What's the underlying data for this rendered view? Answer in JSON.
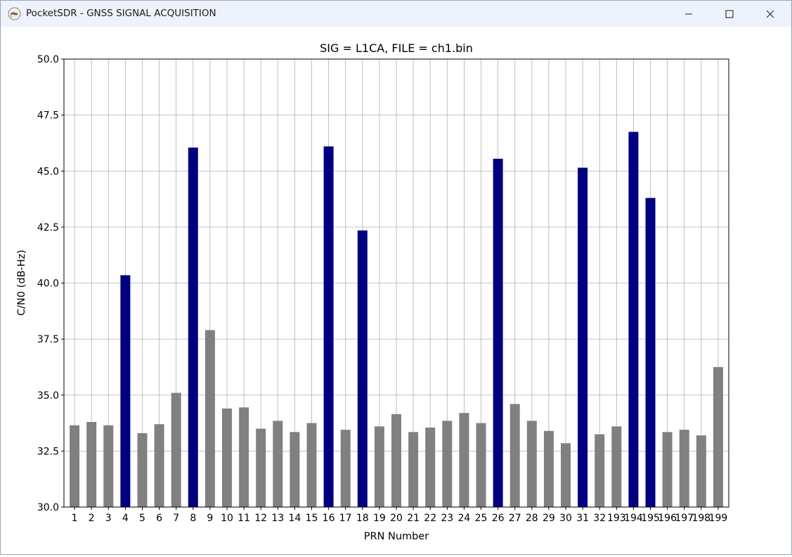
{
  "window": {
    "title": "PocketSDR - GNSS SIGNAL ACQUISITION",
    "app_icon": "satellite-icon",
    "controls": [
      "minimize-icon",
      "maximize-icon",
      "close-icon"
    ]
  },
  "chart_data": {
    "type": "bar",
    "title": "SIG = L1CA, FILE = ch1.bin",
    "xlabel": "PRN Number",
    "ylabel": "C/N0 (dB-Hz)",
    "ylim": [
      30.0,
      50.0
    ],
    "yticks": [
      "30.0",
      "32.5",
      "35.0",
      "37.5",
      "40.0",
      "42.5",
      "45.0",
      "47.5",
      "50.0"
    ],
    "grid": true,
    "categories": [
      "1",
      "2",
      "3",
      "4",
      "5",
      "6",
      "7",
      "8",
      "9",
      "10",
      "11",
      "12",
      "13",
      "14",
      "15",
      "16",
      "17",
      "18",
      "19",
      "20",
      "21",
      "22",
      "23",
      "24",
      "25",
      "26",
      "27",
      "28",
      "29",
      "30",
      "31",
      "32",
      "193",
      "194",
      "195",
      "196",
      "197",
      "198",
      "199"
    ],
    "values": [
      33.65,
      33.8,
      33.65,
      40.35,
      33.3,
      33.7,
      35.1,
      46.05,
      37.9,
      34.4,
      34.45,
      33.5,
      33.85,
      33.35,
      33.75,
      46.1,
      33.45,
      42.35,
      33.6,
      34.15,
      33.35,
      33.55,
      33.85,
      34.2,
      33.75,
      45.55,
      34.6,
      33.85,
      33.4,
      32.85,
      45.15,
      33.25,
      33.6,
      46.75,
      43.8,
      33.35,
      33.45,
      33.2,
      36.25
    ],
    "acquired": [
      false,
      false,
      false,
      true,
      false,
      false,
      false,
      true,
      false,
      false,
      false,
      false,
      false,
      false,
      false,
      true,
      false,
      true,
      false,
      false,
      false,
      false,
      false,
      false,
      false,
      true,
      false,
      false,
      false,
      false,
      true,
      false,
      false,
      true,
      true,
      false,
      false,
      false,
      false
    ],
    "colors": {
      "acquired": "#000080",
      "not_acquired": "#808080",
      "grid": "#b0b0b0",
      "axis": "#000000"
    }
  }
}
